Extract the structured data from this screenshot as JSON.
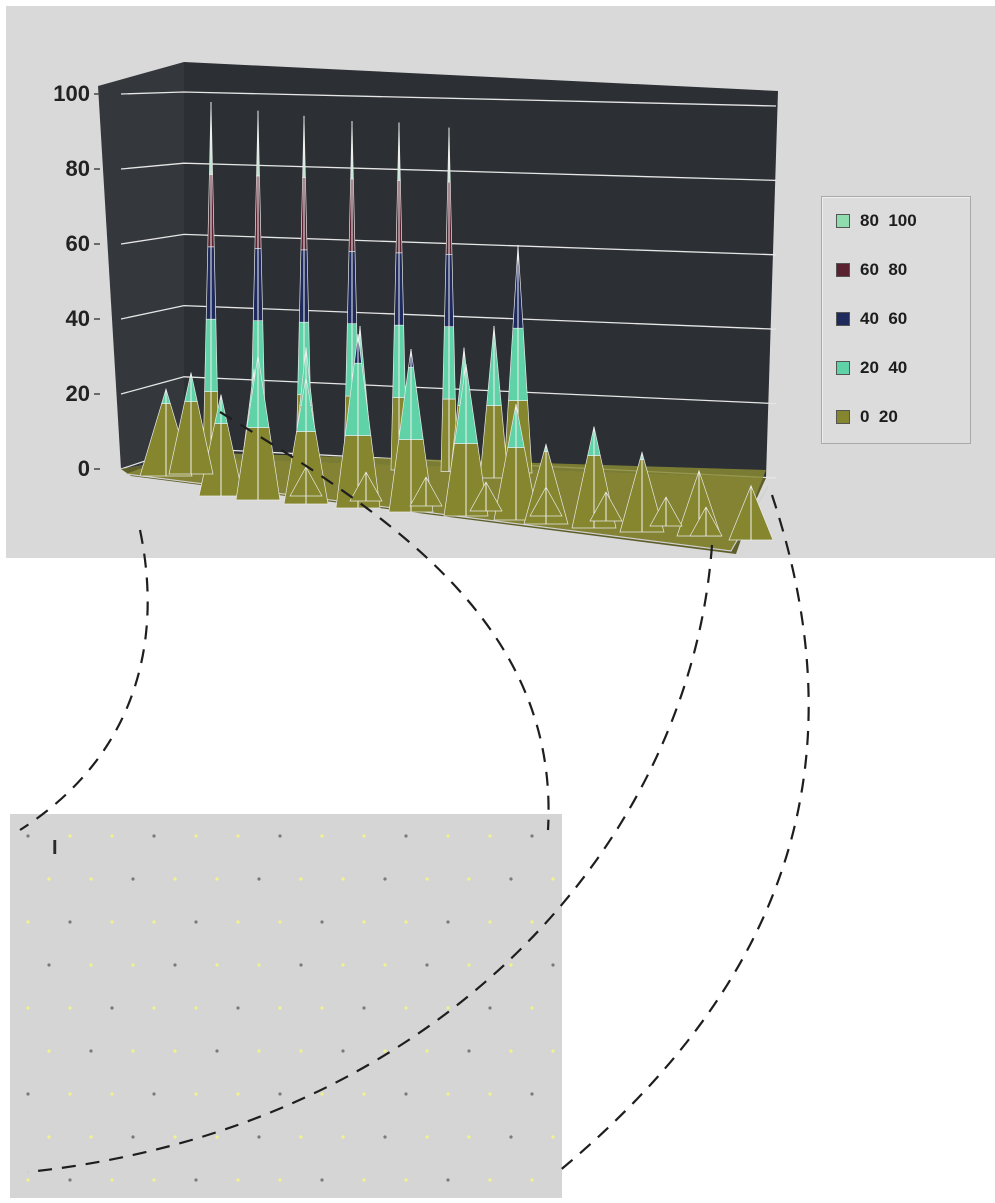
{
  "chart_data": {
    "type": "surface",
    "zlim": [
      0,
      100
    ],
    "z_ticks": [
      "0",
      "20",
      "40",
      "60",
      "80",
      "100"
    ],
    "legend": [
      {
        "label": "80  100",
        "range": [
          80,
          100
        ],
        "color": "#8fdcae"
      },
      {
        "label": "60  80",
        "range": [
          60,
          80
        ],
        "color": "#5a2230"
      },
      {
        "label": "40  60",
        "range": [
          40,
          60
        ],
        "color": "#1e2a5c"
      },
      {
        "label": "20  40",
        "range": [
          20,
          40
        ],
        "color": "#5fd2a8"
      },
      {
        "label": "0  20",
        "range": [
          0,
          20
        ],
        "color": "#86862e"
      }
    ],
    "legend_position": "right",
    "peaks_back_row": [
      {
        "index": 0,
        "height": 100
      },
      {
        "index": 1,
        "height": 98
      },
      {
        "index": 2,
        "height": 97
      },
      {
        "index": 3,
        "height": 96
      },
      {
        "index": 4,
        "height": 96
      },
      {
        "index": 5,
        "height": 95
      },
      {
        "index": 6,
        "height": 63
      }
    ],
    "peaks_front_row": [
      {
        "index": 0,
        "height": 28
      },
      {
        "index": 1,
        "height": 40
      },
      {
        "index": 2,
        "height": 35
      },
      {
        "index": 3,
        "height": 48
      },
      {
        "index": 4,
        "height": 45
      },
      {
        "index": 5,
        "height": 42
      },
      {
        "index": 6,
        "height": 32
      },
      {
        "index": 7,
        "height": 22
      },
      {
        "index": 8,
        "height": 28
      },
      {
        "index": 9,
        "height": 22
      },
      {
        "index": 10,
        "height": 18
      },
      {
        "index": 11,
        "height": 15
      }
    ]
  },
  "inset": {
    "marker_glyph": "I",
    "dot_grid": {
      "rows": 9,
      "cols": 13
    }
  },
  "colors": {
    "wall": "#2c2f33",
    "gridline": "#e6e6e6",
    "floor": "#8a8a35",
    "dashed_line": "#1e1e1e",
    "dot_yellow": "#f2f28a"
  }
}
